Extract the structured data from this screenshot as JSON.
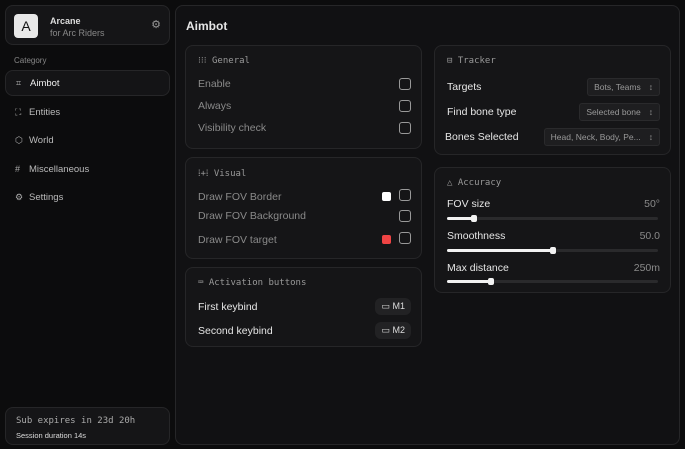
{
  "brand": {
    "logo": "A",
    "name": "Arcane",
    "subtitle": "for Arc Riders"
  },
  "sidebar": {
    "category_label": "Category",
    "items": [
      {
        "label": "Aimbot",
        "icon": "crosshair-icon",
        "active": true
      },
      {
        "label": "Entities",
        "icon": "entities-icon"
      },
      {
        "label": "World",
        "icon": "globe-icon"
      },
      {
        "label": "Miscellaneous",
        "icon": "grid-icon"
      },
      {
        "label": "Settings",
        "icon": "gear-icon"
      }
    ]
  },
  "subscription": {
    "expires": "Sub expires in 23d 20h",
    "session": "Session duration 14s"
  },
  "page_title": "Aimbot",
  "general": {
    "title": "General",
    "rows": [
      {
        "label": "Enable",
        "checked": false
      },
      {
        "label": "Always",
        "checked": false
      },
      {
        "label": "Visibility check",
        "checked": false
      }
    ]
  },
  "visual": {
    "title": "Visual",
    "rows": [
      {
        "label": "Draw FOV Border",
        "color": "#ffffff",
        "checked": false
      },
      {
        "label": "Draw FOV Background",
        "checked": false
      },
      {
        "label": "Draw FOV target",
        "color": "#ef4444",
        "checked": false
      }
    ]
  },
  "activation": {
    "title": "Activation buttons",
    "rows": [
      {
        "label": "First keybind",
        "key": "M1"
      },
      {
        "label": "Second keybind",
        "key": "M2"
      }
    ]
  },
  "tracker": {
    "title": "Tracker",
    "rows": [
      {
        "label": "Targets",
        "value": "Bots, Teams"
      },
      {
        "label": "Find bone type",
        "value": "Selected bone"
      },
      {
        "label": "Bones Selected",
        "value": "Head, Neck, Body, Pe..."
      }
    ]
  },
  "accuracy": {
    "title": "Accuracy",
    "sliders": [
      {
        "label": "FOV size",
        "value": "50°",
        "fill_pct": 13
      },
      {
        "label": "Smoothness",
        "value": "50.0",
        "fill_pct": 50
      },
      {
        "label": "Max distance",
        "value": "250m",
        "fill_pct": 21
      }
    ]
  }
}
